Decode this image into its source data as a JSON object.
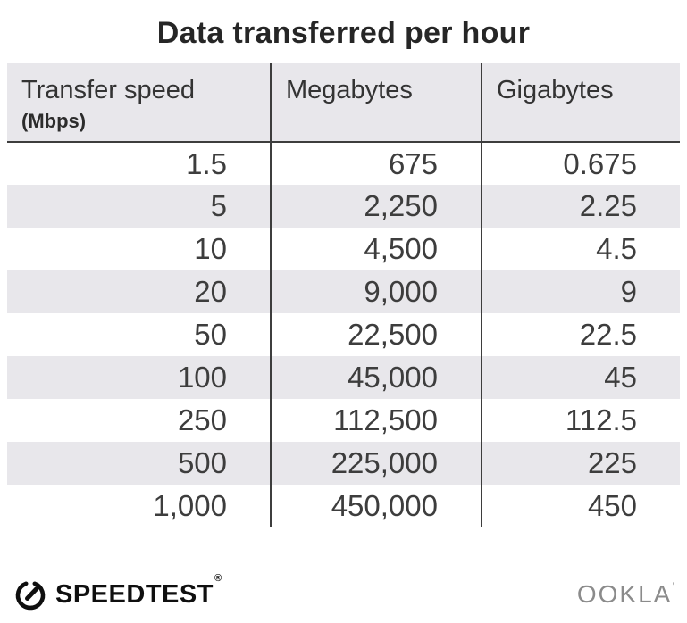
{
  "title": "Data transferred per hour",
  "table": {
    "columns": [
      {
        "label": "Transfer speed",
        "sublabel": "(Mbps)"
      },
      {
        "label": "Megabytes"
      },
      {
        "label": "Gigabytes"
      }
    ],
    "rows": [
      [
        "1.5",
        "675",
        "0.675"
      ],
      [
        "5",
        "2,250",
        "2.25"
      ],
      [
        "10",
        "4,500",
        "4.5"
      ],
      [
        "20",
        "9,000",
        "9"
      ],
      [
        "50",
        "22,500",
        "22.5"
      ],
      [
        "100",
        "45,000",
        "45"
      ],
      [
        "250",
        "112,500",
        "112.5"
      ],
      [
        "500",
        "225,000",
        "225"
      ],
      [
        "1,000",
        "450,000",
        "450"
      ]
    ]
  },
  "footer": {
    "speedtest_label": "SPEEDTEST",
    "speedtest_trademark": "®",
    "ookla_label": "OOKLA",
    "ookla_trademark": "’"
  },
  "colors": {
    "stripe": "#e8e7eb",
    "header_bg": "#e8e7eb",
    "divider_line": "#3d3d3d",
    "body_text": "#3d3d3d",
    "title_text": "#262626",
    "ookla_gray": "#8b8b8b",
    "speedtest_black": "#0f0f0f"
  },
  "chart_data": {
    "type": "table",
    "title": "Data transferred per hour",
    "columns": [
      "Transfer speed (Mbps)",
      "Megabytes",
      "Gigabytes"
    ],
    "rows": [
      [
        1.5,
        675,
        0.675
      ],
      [
        5,
        2250,
        2.25
      ],
      [
        10,
        4500,
        4.5
      ],
      [
        20,
        9000,
        9
      ],
      [
        50,
        22500,
        22.5
      ],
      [
        100,
        45000,
        45
      ],
      [
        250,
        112500,
        112.5
      ],
      [
        500,
        225000,
        225
      ],
      [
        1000,
        450000,
        450
      ]
    ]
  }
}
